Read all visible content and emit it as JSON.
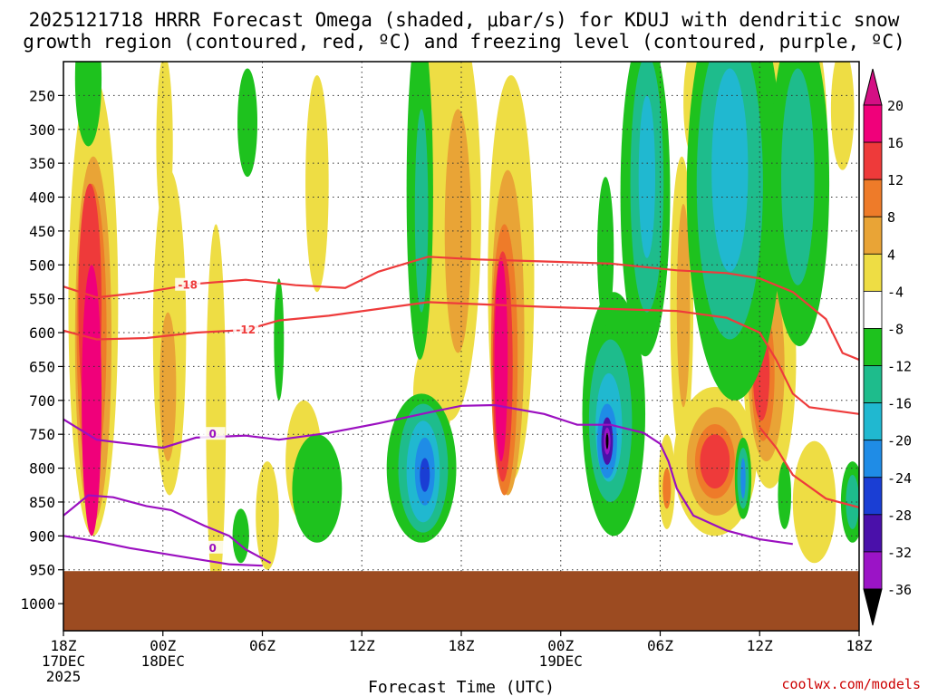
{
  "chart_data": {
    "type": "heatmap",
    "title_line1": "2025121718 HRRR Forecast Omega (shaded, μbar/s) for KDUJ with dendritic snow",
    "title_line2": "growth region (contoured, red, ºC) and freezing level (contoured, purple, ºC)",
    "xlabel": "Forecast Time (UTC)",
    "credit": "coolwx.com/models",
    "x_ticks": [
      {
        "hour": 0,
        "l1": "18Z",
        "l2": "17DEC",
        "l3": "2025"
      },
      {
        "hour": 6,
        "l1": "00Z",
        "l2": "18DEC",
        "l3": ""
      },
      {
        "hour": 12,
        "l1": "06Z",
        "l2": "",
        "l3": ""
      },
      {
        "hour": 18,
        "l1": "12Z",
        "l2": "",
        "l3": ""
      },
      {
        "hour": 24,
        "l1": "18Z",
        "l2": "",
        "l3": ""
      },
      {
        "hour": 30,
        "l1": "00Z",
        "l2": "19DEC",
        "l3": ""
      },
      {
        "hour": 36,
        "l1": "06Z",
        "l2": "",
        "l3": ""
      },
      {
        "hour": 42,
        "l1": "12Z",
        "l2": "",
        "l3": ""
      },
      {
        "hour": 48,
        "l1": "18Z",
        "l2": "",
        "l3": ""
      }
    ],
    "y_ticks": [
      "250",
      "300",
      "350",
      "400",
      "450",
      "500",
      "550",
      "600",
      "650",
      "700",
      "750",
      "800",
      "850",
      "900",
      "950",
      "1000"
    ],
    "y_values": [
      250,
      300,
      350,
      400,
      450,
      500,
      550,
      600,
      650,
      700,
      750,
      800,
      850,
      900,
      950,
      1000
    ],
    "x_range": [
      0,
      48
    ],
    "y_range": [
      200,
      1040
    ],
    "colorbar": {
      "labels": [
        "20",
        "16",
        "12",
        "8",
        "4",
        "-4",
        "-8",
        "-12",
        "-16",
        "-20",
        "-24",
        "-28",
        "-32",
        "-36"
      ],
      "colors": [
        "#f0007a",
        "#ee3a3a",
        "#ee7b29",
        "#e9a436",
        "#eedd44",
        "#ffffff",
        "#1ec21e",
        "#1ebc8c",
        "#20b8d0",
        "#1f8ce6",
        "#1a3ed4",
        "#4a10aa",
        "#9b14c6",
        "#b0b0b0"
      ]
    },
    "fills": [
      {
        "cls": "w4",
        "x": 1.8,
        "p": 560,
        "rx": 1.5,
        "rp": 340
      },
      {
        "cls": "w8",
        "x": 1.8,
        "p": 610,
        "rx": 1.1,
        "rp": 270
      },
      {
        "cls": "w12",
        "x": 1.7,
        "p": 600,
        "rx": 0.9,
        "rp": 220
      },
      {
        "cls": "w16",
        "x": 1.6,
        "p": 560,
        "rx": 0.7,
        "rp": 180
      },
      {
        "cls": "w20",
        "x": 1.7,
        "p": 700,
        "rx": 0.6,
        "rp": 200
      },
      {
        "cls": "w4",
        "x": 6.4,
        "p": 600,
        "rx": 1.0,
        "rp": 240
      },
      {
        "cls": "w8",
        "x": 6.3,
        "p": 680,
        "rx": 0.5,
        "rp": 110
      },
      {
        "cls": "w4",
        "x": 9.2,
        "p": 720,
        "rx": 0.6,
        "rp": 280
      },
      {
        "cls": "w4",
        "x": 6.1,
        "p": 320,
        "rx": 0.5,
        "rp": 130
      },
      {
        "cls": "w4",
        "x": 15.3,
        "p": 380,
        "rx": 0.7,
        "rp": 160
      },
      {
        "cls": "w4",
        "x": 23.3,
        "p": 420,
        "rx": 1.9,
        "rp": 310
      },
      {
        "cls": "w8",
        "x": 23.8,
        "p": 450,
        "rx": 0.8,
        "rp": 180
      },
      {
        "cls": "w4",
        "x": 27.0,
        "p": 520,
        "rx": 1.4,
        "rp": 300
      },
      {
        "cls": "w8",
        "x": 26.8,
        "p": 600,
        "rx": 1.0,
        "rp": 240
      },
      {
        "cls": "w12",
        "x": 26.6,
        "p": 640,
        "rx": 0.8,
        "rp": 200
      },
      {
        "cls": "w16",
        "x": 26.5,
        "p": 650,
        "rx": 0.6,
        "rp": 170
      },
      {
        "cls": "w20",
        "x": 26.4,
        "p": 640,
        "rx": 0.4,
        "rp": 150
      },
      {
        "cls": "w4",
        "x": 14.5,
        "p": 790,
        "rx": 1.1,
        "rp": 90
      },
      {
        "cls": "w4",
        "x": 22.3,
        "p": 690,
        "rx": 1.2,
        "rp": 80
      },
      {
        "cls": "w4",
        "x": 37.3,
        "p": 560,
        "rx": 0.7,
        "rp": 220
      },
      {
        "cls": "w8",
        "x": 37.4,
        "p": 560,
        "rx": 0.4,
        "rp": 150
      },
      {
        "cls": "w4",
        "x": 39.3,
        "p": 790,
        "rx": 2.5,
        "rp": 110
      },
      {
        "cls": "w8",
        "x": 39.4,
        "p": 790,
        "rx": 1.8,
        "rp": 80
      },
      {
        "cls": "w12",
        "x": 39.3,
        "p": 790,
        "rx": 1.2,
        "rp": 55
      },
      {
        "cls": "w16",
        "x": 39.3,
        "p": 790,
        "rx": 0.9,
        "rp": 40
      },
      {
        "cls": "w4",
        "x": 42.6,
        "p": 640,
        "rx": 1.6,
        "rp": 190
      },
      {
        "cls": "w8",
        "x": 42.4,
        "p": 650,
        "rx": 1.1,
        "rp": 140
      },
      {
        "cls": "w12",
        "x": 42.2,
        "p": 660,
        "rx": 0.7,
        "rp": 100
      },
      {
        "cls": "w16",
        "x": 42.1,
        "p": 660,
        "rx": 0.5,
        "rp": 70
      },
      {
        "cls": "w4",
        "x": 36.4,
        "p": 820,
        "rx": 0.5,
        "rp": 70
      },
      {
        "cls": "w12",
        "x": 36.4,
        "p": 830,
        "rx": 0.25,
        "rp": 30
      },
      {
        "cls": "w4",
        "x": 45.3,
        "p": 850,
        "rx": 1.3,
        "rp": 90
      },
      {
        "cls": "w4",
        "x": 38.0,
        "p": 260,
        "rx": 0.6,
        "rp": 80
      },
      {
        "cls": "w4",
        "x": 47.0,
        "p": 270,
        "rx": 0.7,
        "rp": 90
      },
      {
        "cls": "w4",
        "x": 45.5,
        "p": 340,
        "rx": 0.6,
        "rp": 160
      },
      {
        "cls": "w4",
        "x": 43.6,
        "p": 230,
        "rx": 1.3,
        "rp": 80
      },
      {
        "cls": "w4",
        "x": 12.3,
        "p": 870,
        "rx": 0.7,
        "rp": 80
      },
      {
        "cls": "n4",
        "x": 1.5,
        "p": 225,
        "rx": 0.8,
        "rp": 100
      },
      {
        "cls": "n4",
        "x": 11.1,
        "p": 290,
        "rx": 0.6,
        "rp": 80
      },
      {
        "cls": "n4",
        "x": 21.5,
        "p": 390,
        "rx": 0.8,
        "rp": 250
      },
      {
        "cls": "n8",
        "x": 21.6,
        "p": 420,
        "rx": 0.4,
        "rp": 150
      },
      {
        "cls": "n4",
        "x": 35.1,
        "p": 395,
        "rx": 1.5,
        "rp": 240
      },
      {
        "cls": "n8",
        "x": 35.2,
        "p": 380,
        "rx": 1.0,
        "rp": 190
      },
      {
        "cls": "n12",
        "x": 35.2,
        "p": 370,
        "rx": 0.5,
        "rp": 120
      },
      {
        "cls": "n4",
        "x": 40.5,
        "p": 390,
        "rx": 2.9,
        "rp": 310
      },
      {
        "cls": "n8",
        "x": 40.2,
        "p": 380,
        "rx": 2.0,
        "rp": 230
      },
      {
        "cls": "n12",
        "x": 40.2,
        "p": 360,
        "rx": 1.1,
        "rp": 150
      },
      {
        "cls": "n4",
        "x": 44.4,
        "p": 380,
        "rx": 1.8,
        "rp": 240
      },
      {
        "cls": "n8",
        "x": 44.3,
        "p": 370,
        "rx": 1.0,
        "rp": 160
      },
      {
        "cls": "n4",
        "x": 21.6,
        "p": 800,
        "rx": 2.1,
        "rp": 110
      },
      {
        "cls": "n8",
        "x": 21.7,
        "p": 800,
        "rx": 1.5,
        "rp": 95
      },
      {
        "cls": "n12",
        "x": 21.7,
        "p": 805,
        "rx": 1.0,
        "rp": 75
      },
      {
        "cls": "n16",
        "x": 21.8,
        "p": 805,
        "rx": 0.6,
        "rp": 50
      },
      {
        "cls": "n20",
        "x": 21.8,
        "p": 810,
        "rx": 0.3,
        "rp": 25
      },
      {
        "cls": "n4",
        "x": 33.2,
        "p": 720,
        "rx": 1.9,
        "rp": 180
      },
      {
        "cls": "n8",
        "x": 33.0,
        "p": 730,
        "rx": 1.3,
        "rp": 120
      },
      {
        "cls": "n12",
        "x": 32.9,
        "p": 740,
        "rx": 0.8,
        "rp": 80
      },
      {
        "cls": "n16",
        "x": 32.8,
        "p": 760,
        "rx": 0.6,
        "rp": 55
      },
      {
        "cls": "n24",
        "x": 32.8,
        "p": 760,
        "rx": 0.35,
        "rp": 35
      },
      {
        "cls": "n32",
        "x": 32.8,
        "p": 760,
        "rx": 0.2,
        "rp": 20
      },
      {
        "cls": "n36",
        "x": 32.8,
        "p": 760,
        "rx": 0.08,
        "rp": 12
      },
      {
        "cls": "n4",
        "x": 32.7,
        "p": 480,
        "rx": 0.5,
        "rp": 110
      },
      {
        "cls": "n4",
        "x": 13.0,
        "p": 610,
        "rx": 0.3,
        "rp": 90
      },
      {
        "cls": "n4",
        "x": 10.7,
        "p": 900,
        "rx": 0.5,
        "rp": 40
      },
      {
        "cls": "n4",
        "x": 15.3,
        "p": 830,
        "rx": 1.5,
        "rp": 80
      },
      {
        "cls": "n4",
        "x": 41.0,
        "p": 815,
        "rx": 0.5,
        "rp": 60
      },
      {
        "cls": "n8",
        "x": 41.0,
        "p": 815,
        "rx": 0.35,
        "rp": 45
      },
      {
        "cls": "n16",
        "x": 41.0,
        "p": 815,
        "rx": 0.15,
        "rp": 30
      },
      {
        "cls": "n4",
        "x": 43.5,
        "p": 840,
        "rx": 0.4,
        "rp": 50
      },
      {
        "cls": "n4",
        "x": 47.6,
        "p": 850,
        "rx": 0.7,
        "rp": 60
      },
      {
        "cls": "n8",
        "x": 47.6,
        "p": 850,
        "rx": 0.4,
        "rp": 40
      }
    ],
    "dgz_lines": [
      {
        "label": "-18",
        "label_at": [
          7.5,
          530
        ],
        "points": [
          [
            0,
            532
          ],
          [
            2,
            548
          ],
          [
            5,
            540
          ],
          [
            8,
            528
          ],
          [
            11,
            522
          ],
          [
            14,
            530
          ],
          [
            17,
            534
          ],
          [
            19,
            510
          ],
          [
            22,
            488
          ],
          [
            25,
            492
          ],
          [
            29,
            495
          ],
          [
            33,
            498
          ],
          [
            37,
            508
          ],
          [
            40,
            512
          ],
          [
            42,
            520
          ],
          [
            44,
            540
          ],
          [
            46,
            580
          ],
          [
            47,
            630
          ],
          [
            48,
            640
          ]
        ]
      },
      {
        "label": "-12",
        "label_at": [
          11.0,
          596
        ],
        "points": [
          [
            0,
            597
          ],
          [
            2,
            610
          ],
          [
            5,
            608
          ],
          [
            8,
            600
          ],
          [
            11,
            596
          ],
          [
            13,
            582
          ],
          [
            16,
            575
          ],
          [
            19,
            565
          ],
          [
            22,
            555
          ],
          [
            25,
            558
          ],
          [
            29,
            562
          ],
          [
            33,
            565
          ],
          [
            37,
            568
          ],
          [
            40,
            578
          ],
          [
            42,
            600
          ],
          [
            43,
            640
          ],
          [
            44,
            690
          ],
          [
            45,
            710
          ],
          [
            48,
            720
          ]
        ]
      },
      {
        "label": "",
        "label_at": [
          0,
          0
        ],
        "points": [
          [
            42,
            740
          ],
          [
            43,
            770
          ],
          [
            44,
            810
          ],
          [
            46,
            845
          ],
          [
            48,
            858
          ]
        ]
      }
    ],
    "freeze_lines": [
      {
        "label": "0",
        "label_at": [
          9.0,
          750
        ],
        "points": [
          [
            0,
            728
          ],
          [
            2,
            758
          ],
          [
            4,
            764
          ],
          [
            6,
            770
          ],
          [
            8,
            755
          ],
          [
            11,
            752
          ],
          [
            13,
            758
          ],
          [
            16,
            748
          ],
          [
            19,
            734
          ],
          [
            22,
            718
          ],
          [
            24,
            708
          ],
          [
            26,
            707
          ],
          [
            29,
            720
          ],
          [
            31,
            736
          ],
          [
            33,
            736
          ],
          [
            35,
            748
          ],
          [
            36,
            764
          ],
          [
            36.5,
            790
          ],
          [
            37,
            830
          ],
          [
            38,
            870
          ],
          [
            40,
            892
          ],
          [
            42,
            905
          ],
          [
            44,
            912
          ]
        ]
      },
      {
        "label": "0",
        "label_at": [
          9.0,
          918
        ],
        "points": [
          [
            0,
            870
          ],
          [
            1.5,
            840
          ],
          [
            3,
            843
          ],
          [
            5,
            856
          ],
          [
            6.5,
            862
          ],
          [
            8.5,
            885
          ],
          [
            10,
            900
          ],
          [
            11,
            920
          ],
          [
            12.5,
            940
          ]
        ]
      },
      {
        "label": "",
        "label_at": [
          0,
          0
        ],
        "points": [
          [
            0,
            900
          ],
          [
            2,
            908
          ],
          [
            4,
            918
          ],
          [
            6,
            926
          ],
          [
            8,
            934
          ],
          [
            10,
            942
          ],
          [
            12,
            944
          ]
        ]
      }
    ],
    "terrain_pressure": 952
  }
}
